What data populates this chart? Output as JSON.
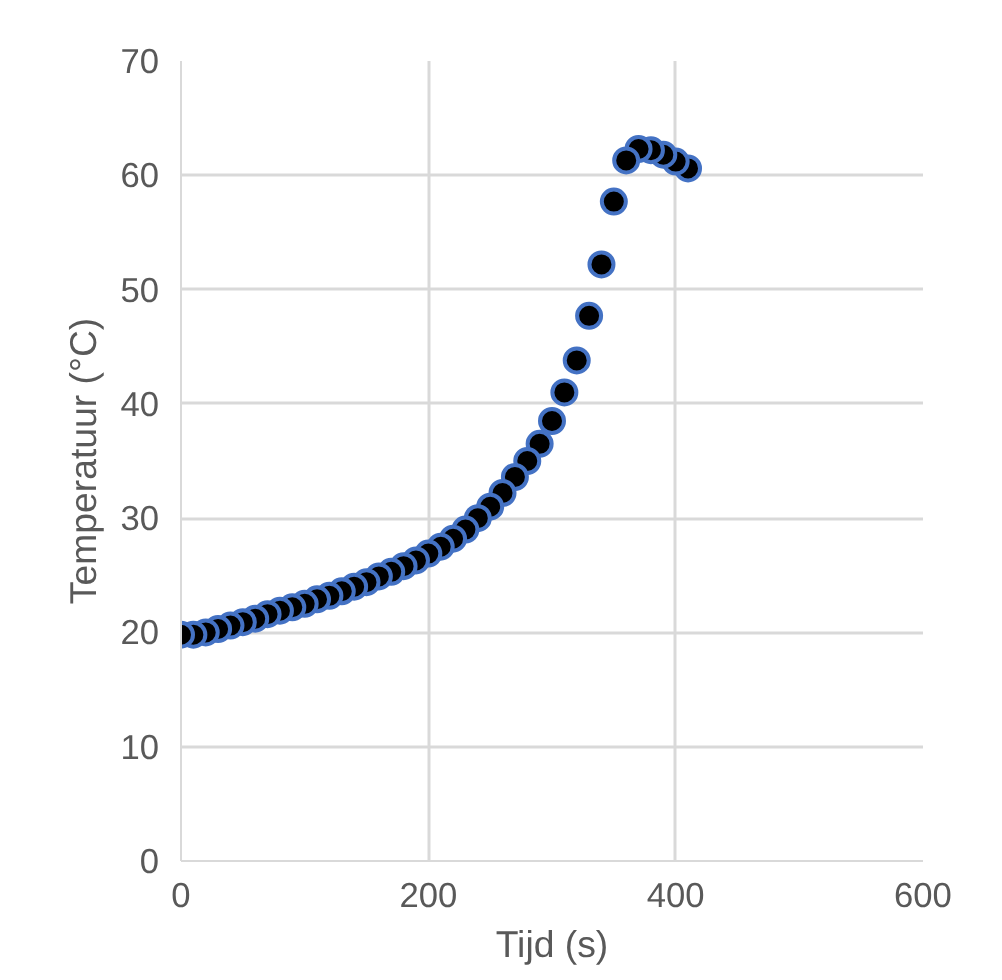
{
  "chart_data": {
    "type": "scatter",
    "xlabel": "Tijd (s)",
    "ylabel": "Temperatuur (°C)",
    "x": [
      0,
      10,
      20,
      30,
      40,
      50,
      60,
      70,
      80,
      90,
      100,
      110,
      120,
      130,
      140,
      150,
      160,
      170,
      180,
      190,
      200,
      210,
      220,
      230,
      240,
      250,
      260,
      270,
      280,
      290,
      300,
      310,
      320,
      330,
      340,
      350,
      360,
      370,
      380,
      390,
      400,
      410
    ],
    "series": [
      {
        "color": "#000000",
        "values": [
          19.8,
          19.8,
          20.0,
          20.3,
          20.6,
          20.9,
          21.2,
          21.6,
          21.9,
          22.2,
          22.5,
          22.9,
          23.2,
          23.6,
          24.0,
          24.4,
          24.9,
          25.3,
          25.8,
          26.3,
          26.9,
          27.5,
          28.2,
          29.0,
          30.0,
          31.0,
          32.2,
          33.6,
          35.0,
          36.5,
          38.5,
          41.0,
          43.8,
          47.7,
          52.2,
          57.7,
          61.3,
          62.3,
          62.2,
          61.8,
          61.2,
          60.6
        ]
      }
    ],
    "marker": "circle",
    "grid": true,
    "xlim": [
      0,
      600
    ],
    "ylim": [
      0,
      70
    ],
    "xticks": [
      0,
      200,
      400,
      600
    ],
    "yticks": [
      0,
      10,
      20,
      30,
      40,
      50,
      60,
      70
    ]
  }
}
